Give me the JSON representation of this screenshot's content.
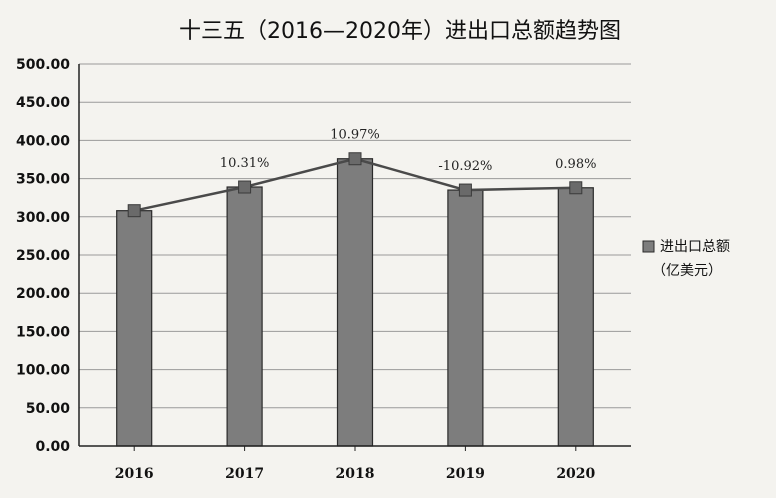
{
  "chart_data": {
    "type": "bar",
    "title": "十三五（2016—2020年）进出口总额趋势图",
    "categories": [
      "2016",
      "2017",
      "2018",
      "2019",
      "2020"
    ],
    "series": [
      {
        "name": "进出口总额（亿美元）",
        "values": [
          308,
          339,
          376,
          335,
          338
        ]
      }
    ],
    "line_values": [
      308,
      339,
      376,
      335,
      338
    ],
    "data_labels": [
      "",
      "10.31%",
      "10.97%",
      "-10.92%",
      "0.98%"
    ],
    "yticks": [
      "0.00",
      "50.00",
      "100.00",
      "150.00",
      "200.00",
      "250.00",
      "300.00",
      "350.00",
      "400.00",
      "450.00",
      "500.00"
    ],
    "ylim": [
      0,
      500
    ],
    "ystep": 50,
    "grid": true,
    "legend_position": "right",
    "legend": {
      "line1": "进出口总额",
      "line2": "（亿美元）"
    },
    "colors": {
      "bar": "#7d7d7d",
      "bar_edge": "#2a2a2a",
      "line": "#4a4a4a",
      "grid": "#9a9a9a",
      "marker": "#6a6a6a"
    }
  }
}
